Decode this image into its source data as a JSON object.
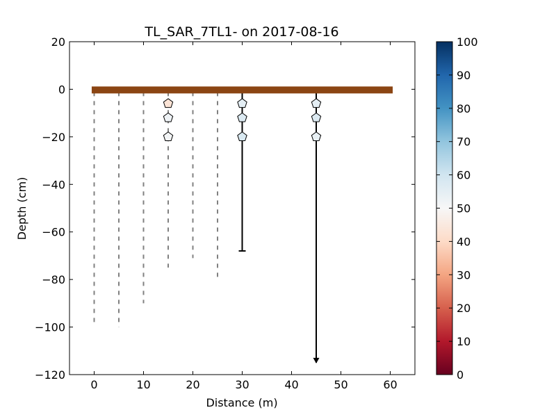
{
  "chart_data": {
    "type": "profile",
    "title": "TL_SAR_7TL1-  on 2017-08-16",
    "xlabel": "Distance (m)",
    "ylabel": "Depth (cm)",
    "xlim": [
      -5,
      65
    ],
    "ylim": [
      -120,
      20
    ],
    "xticks": [
      0,
      10,
      20,
      30,
      40,
      50,
      60
    ],
    "yticks": [
      20,
      0,
      -20,
      -40,
      -60,
      -80,
      -100,
      -120
    ],
    "surface": {
      "x_start": -0.5,
      "x_end": 60.5,
      "depth": 0,
      "color": "#8b4513"
    },
    "probes": [
      {
        "x": 0,
        "depth": -98,
        "style": "dashed"
      },
      {
        "x": 5,
        "depth": -100,
        "style": "dashed"
      },
      {
        "x": 10,
        "depth": -90,
        "style": "dashed"
      },
      {
        "x": 15,
        "depth": -75,
        "style": "dashed"
      },
      {
        "x": 20,
        "depth": -71,
        "style": "dashed"
      },
      {
        "x": 25,
        "depth": -80,
        "style": "dashed"
      },
      {
        "x": 30,
        "depth": -68,
        "style": "solid",
        "end": "bar"
      },
      {
        "x": 45,
        "depth": -115,
        "style": "solid",
        "end": "arrow"
      }
    ],
    "points": [
      {
        "x": 15,
        "depth": -6,
        "value": 43
      },
      {
        "x": 15,
        "depth": -12,
        "value": 52
      },
      {
        "x": 15,
        "depth": -20,
        "value": 51
      },
      {
        "x": 30,
        "depth": -6,
        "value": 55
      },
      {
        "x": 30,
        "depth": -12,
        "value": 57
      },
      {
        "x": 30,
        "depth": -20,
        "value": 58
      },
      {
        "x": 45,
        "depth": -6,
        "value": 55
      },
      {
        "x": 45,
        "depth": -12,
        "value": 57
      },
      {
        "x": 45,
        "depth": -20,
        "value": 54
      }
    ],
    "colorbar": {
      "min": 0,
      "max": 100,
      "ticks": [
        0,
        10,
        20,
        30,
        40,
        50,
        60,
        70,
        80,
        90,
        100
      ],
      "colormap": "RdBu",
      "stops": [
        [
          0,
          "#67001f"
        ],
        [
          0.1,
          "#b2182b"
        ],
        [
          0.2,
          "#d6604d"
        ],
        [
          0.3,
          "#f4a582"
        ],
        [
          0.4,
          "#fddbc7"
        ],
        [
          0.5,
          "#f7f7f7"
        ],
        [
          0.6,
          "#d1e5f0"
        ],
        [
          0.7,
          "#92c5de"
        ],
        [
          0.8,
          "#4393c3"
        ],
        [
          0.9,
          "#2166ac"
        ],
        [
          1.0,
          "#053061"
        ]
      ]
    },
    "grid": false
  }
}
